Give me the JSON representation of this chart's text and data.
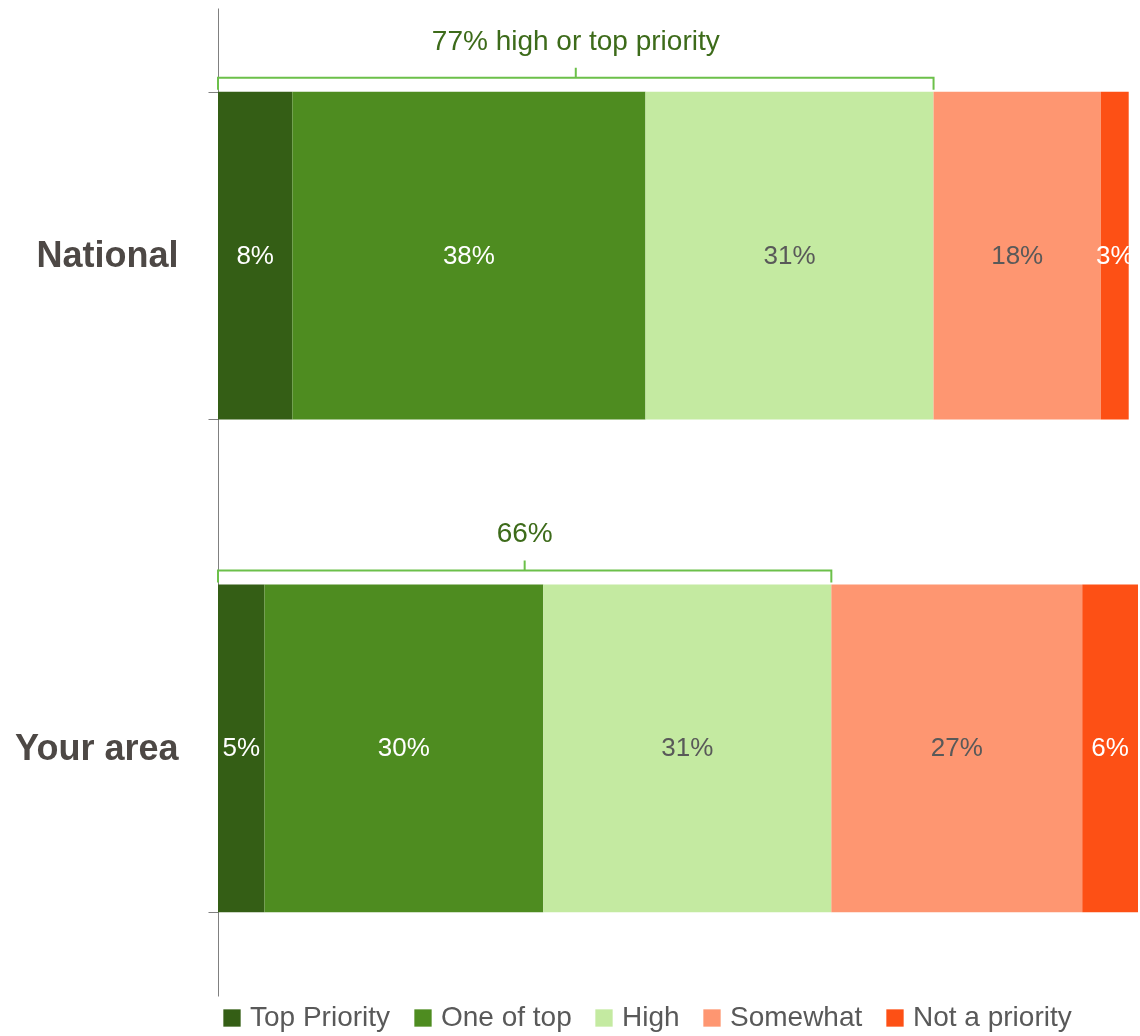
{
  "chart_data": {
    "type": "bar",
    "orientation": "horizontal",
    "stacked": true,
    "categories": [
      "National",
      "Your area"
    ],
    "series": [
      {
        "name": "Top Priority",
        "color": "#345e15",
        "values": [
          8,
          5
        ],
        "value_labels": [
          "8%",
          "5%"
        ]
      },
      {
        "name": "One of top",
        "color": "#4e8c20",
        "values": [
          38,
          30
        ],
        "value_labels": [
          "38%",
          "30%"
        ]
      },
      {
        "name": "High",
        "color": "#c4eaa1",
        "values": [
          31,
          31
        ],
        "value_labels": [
          "31%",
          "31%"
        ]
      },
      {
        "name": "Somewhat",
        "color": "#fe9671",
        "values": [
          18,
          27
        ],
        "value_labels": [
          "18%",
          "27%"
        ]
      },
      {
        "name": "Not a priority",
        "color": "#fd5015",
        "values": [
          3,
          6
        ],
        "value_labels": [
          "3%",
          "6%"
        ]
      }
    ],
    "annotations": [
      "77% high or top priority",
      "66%"
    ],
    "legend": "bottom",
    "grid": false
  }
}
